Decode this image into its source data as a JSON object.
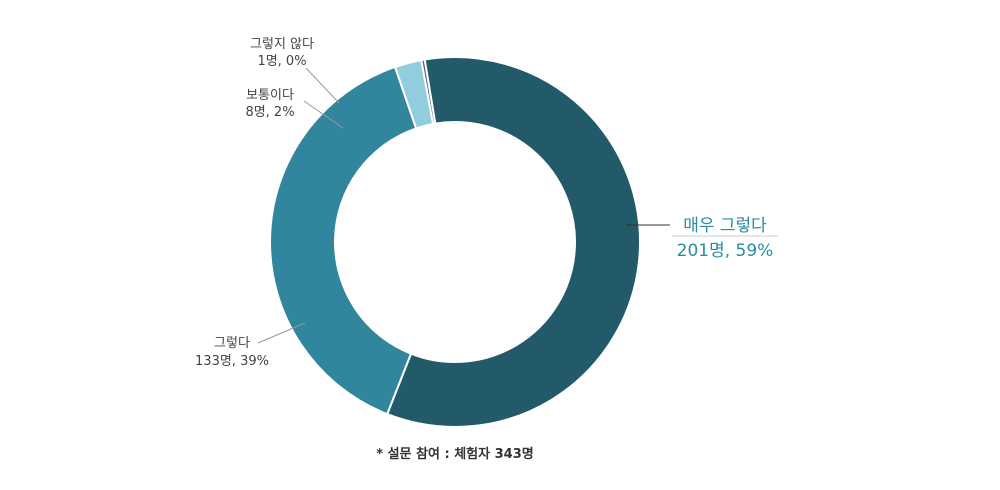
{
  "chart_data": {
    "type": "pie",
    "donut": true,
    "categories": [
      "매우 그렇다",
      "그렇다",
      "보통이다",
      "그렇지 않다"
    ],
    "values": [
      201,
      133,
      8,
      1
    ],
    "percents": [
      "59%",
      "39%",
      "2%",
      "0%"
    ],
    "value_labels": [
      "201명, 59%",
      "133명, 39%",
      "8명, 2%",
      "1명, 0%"
    ],
    "colors": [
      "#235a6a",
      "#31859c",
      "#92cddd",
      "#4a6b77"
    ],
    "footnote": "*  설문  참여  :  체험자  343명"
  }
}
